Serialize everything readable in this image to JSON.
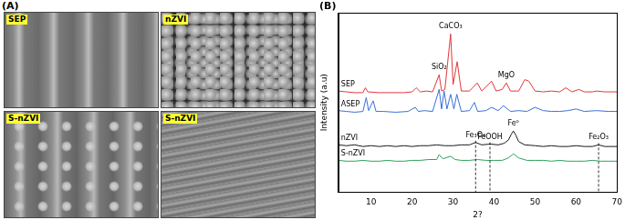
{
  "panel_a": {
    "label": "(A)",
    "images": [
      {
        "label": "SEP"
      },
      {
        "label": "nZVI"
      },
      {
        "label": "S-nZVI"
      },
      {
        "label": "S-nZVI"
      }
    ]
  },
  "chart_data": {
    "type": "line",
    "title": "(B)",
    "x_label": "2?",
    "y_label": "Intensity (a.u)",
    "xlim": [
      2,
      70
    ],
    "xticks": [
      10,
      20,
      30,
      40,
      50,
      60,
      70
    ],
    "ylim": [
      0,
      110
    ],
    "yticks": [],
    "tick_labels": "x",
    "grid": false,
    "series": [
      {
        "name": "SEP",
        "color": "#e0383c",
        "x": [
          2,
          4,
          6,
          8,
          8.6,
          9.2,
          12,
          15,
          18,
          20,
          21,
          22,
          23.5,
          25,
          26.6,
          27.2,
          28,
          29.4,
          30,
          31,
          32,
          34,
          35.9,
          37,
          39.4,
          40.5,
          42,
          43,
          44,
          46,
          47.5,
          48.5,
          50,
          52,
          54,
          56,
          57.5,
          59,
          60.7,
          62,
          64,
          65,
          67,
          70
        ],
        "values": [
          62,
          61.5,
          61,
          61,
          64,
          61.5,
          61,
          61,
          61,
          61.5,
          64,
          61.5,
          62,
          61.5,
          72,
          62,
          63,
          97,
          66,
          80,
          62,
          62,
          67,
          62,
          68,
          62,
          63,
          67,
          62,
          62,
          69,
          68,
          62,
          61.5,
          62,
          61.5,
          64,
          61.5,
          63,
          61.5,
          61.5,
          62,
          61.5,
          61.5
        ]
      },
      {
        "name": "ASEP",
        "color": "#3a6fd8",
        "x": [
          2,
          4,
          6,
          8,
          8.8,
          9.4,
          10.5,
          11.2,
          13,
          16,
          19,
          20.8,
          21.5,
          23,
          25,
          26.6,
          27.2,
          27.8,
          28.5,
          29.4,
          30.2,
          30.9,
          32,
          34,
          35.2,
          36,
          38,
          39.4,
          41,
          42.3,
          44,
          46,
          48,
          50,
          52,
          54,
          56,
          58,
          60,
          62,
          65,
          68,
          70
        ],
        "values": [
          50,
          49.5,
          49,
          49.5,
          58,
          50,
          56,
          49.5,
          49.5,
          49,
          49.5,
          52,
          49.5,
          50,
          49.5,
          63,
          51,
          62,
          51,
          60,
          51,
          60,
          49.5,
          50,
          55,
          49.5,
          50,
          52,
          50,
          53,
          49.5,
          50,
          49.5,
          52,
          50,
          49.5,
          49.5,
          50,
          51,
          49.5,
          50,
          49.5,
          49.5
        ]
      },
      {
        "name": "nZVI",
        "color": "#1a1a1a",
        "x": [
          2,
          4,
          6,
          8,
          10,
          12,
          14,
          16,
          18,
          20,
          22,
          24,
          26,
          28,
          30,
          32,
          34,
          35.5,
          37,
          39,
          41,
          42.5,
          43.5,
          44.2,
          44.7,
          45.3,
          46,
          47.5,
          50,
          52,
          54,
          56,
          58,
          60,
          62,
          64,
          65.5,
          67,
          70
        ],
        "values": [
          29,
          28.5,
          29,
          28,
          28.5,
          28,
          28.5,
          28,
          28.5,
          28,
          28.5,
          28.5,
          29,
          28.5,
          28.5,
          29,
          29,
          30.5,
          29,
          29.5,
          29,
          30,
          32,
          35.5,
          37.5,
          35,
          31,
          29,
          28.5,
          28,
          28.5,
          28,
          28,
          28.5,
          28,
          28,
          29,
          28,
          28
        ]
      },
      {
        "name": "S-nZVI",
        "color": "#2ca05a",
        "x": [
          2,
          4,
          6,
          8,
          10,
          12,
          14,
          16,
          18,
          20,
          22,
          24,
          26,
          26.6,
          27.5,
          29.4,
          30.5,
          32,
          34,
          36,
          38,
          40,
          42,
          43.5,
          44.7,
          46,
          48,
          50,
          52,
          54,
          56,
          58,
          60,
          62,
          64,
          66,
          68,
          70
        ],
        "values": [
          19.5,
          19,
          19,
          19.5,
          19,
          19,
          19.5,
          19,
          19,
          19.5,
          19.5,
          20,
          20,
          23,
          20.5,
          22,
          20,
          19.5,
          19.5,
          20,
          19.5,
          19.5,
          19.5,
          21,
          23.5,
          21,
          19.5,
          19.5,
          19.5,
          19,
          19.5,
          19,
          19,
          19,
          19.5,
          19,
          19,
          19
        ]
      }
    ],
    "annotations": [
      {
        "text": "CaCO₃",
        "x": 29.4,
        "series": "SEP"
      },
      {
        "text": "SiO₂",
        "x": 26.6,
        "series": "SEP"
      },
      {
        "text": "MgO",
        "x": 43,
        "series": "SEP"
      },
      {
        "text": "Fe₃O₄",
        "x": 35.5,
        "series": "nZVI",
        "line_style": "dashed"
      },
      {
        "text": "FeOOH",
        "x": 39,
        "series": "nZVI",
        "line_style": "dashed"
      },
      {
        "text": "Fe⁰",
        "x": 44.7,
        "series": "nZVI"
      },
      {
        "text": "Fe₂O₃",
        "x": 65.5,
        "series": "nZVI",
        "line_style": "dashed"
      }
    ]
  }
}
